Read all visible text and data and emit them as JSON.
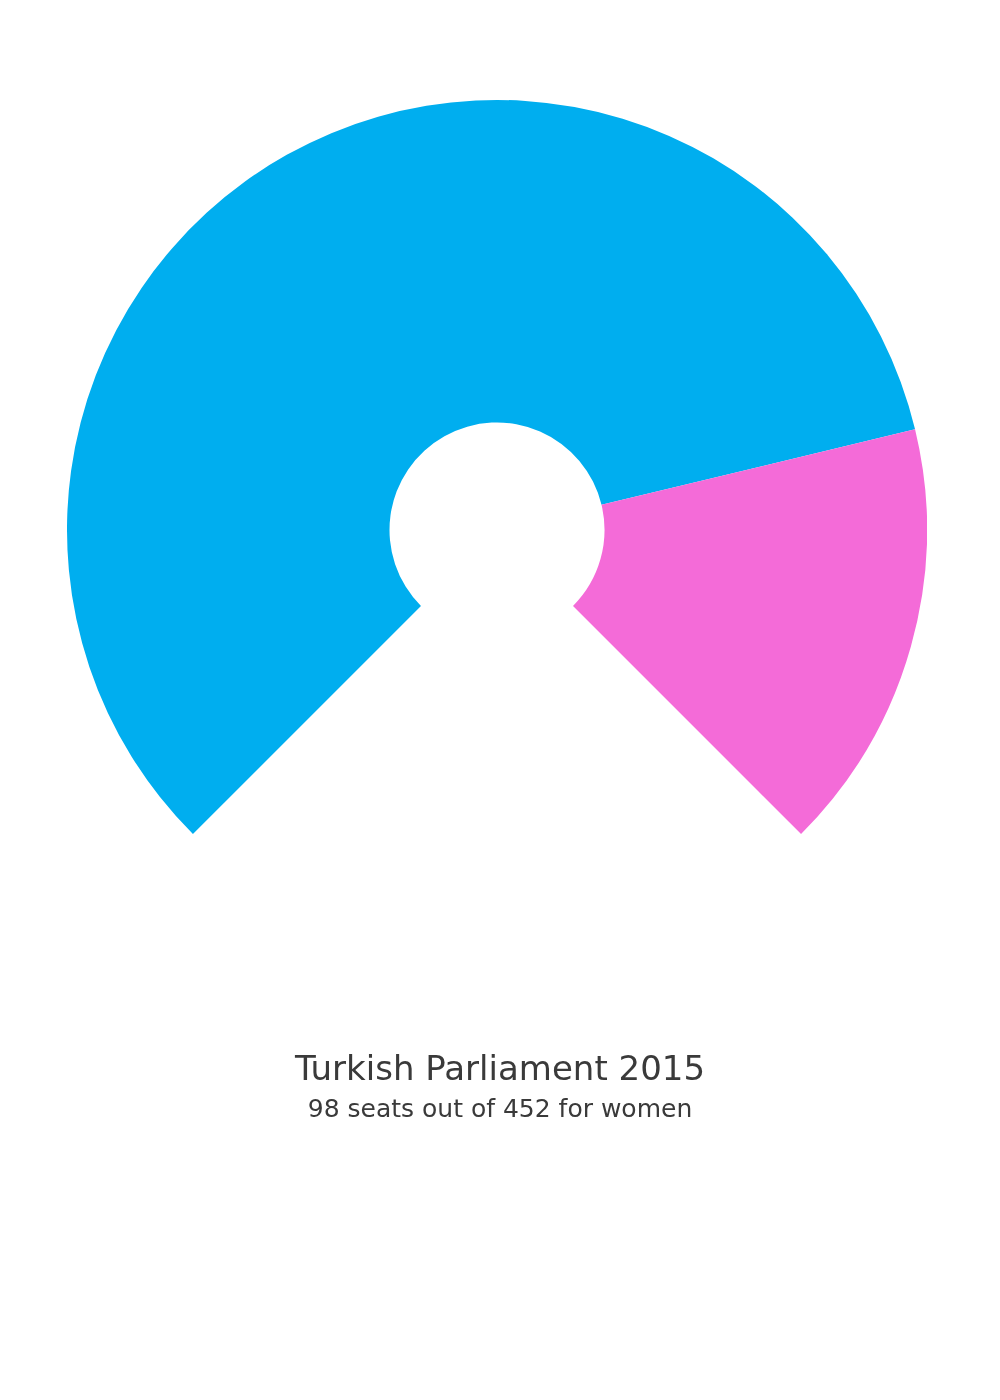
{
  "chart_data": {
    "type": "donut",
    "title": "Turkish Parliament 2015",
    "subtitle": "98 seats out of 452 for women",
    "categories": [
      null,
      null
    ],
    "values": [
      78.32,
      21.68
    ],
    "colors": [
      "#00aeef",
      "#f46bd8"
    ],
    "legend": false
  }
}
